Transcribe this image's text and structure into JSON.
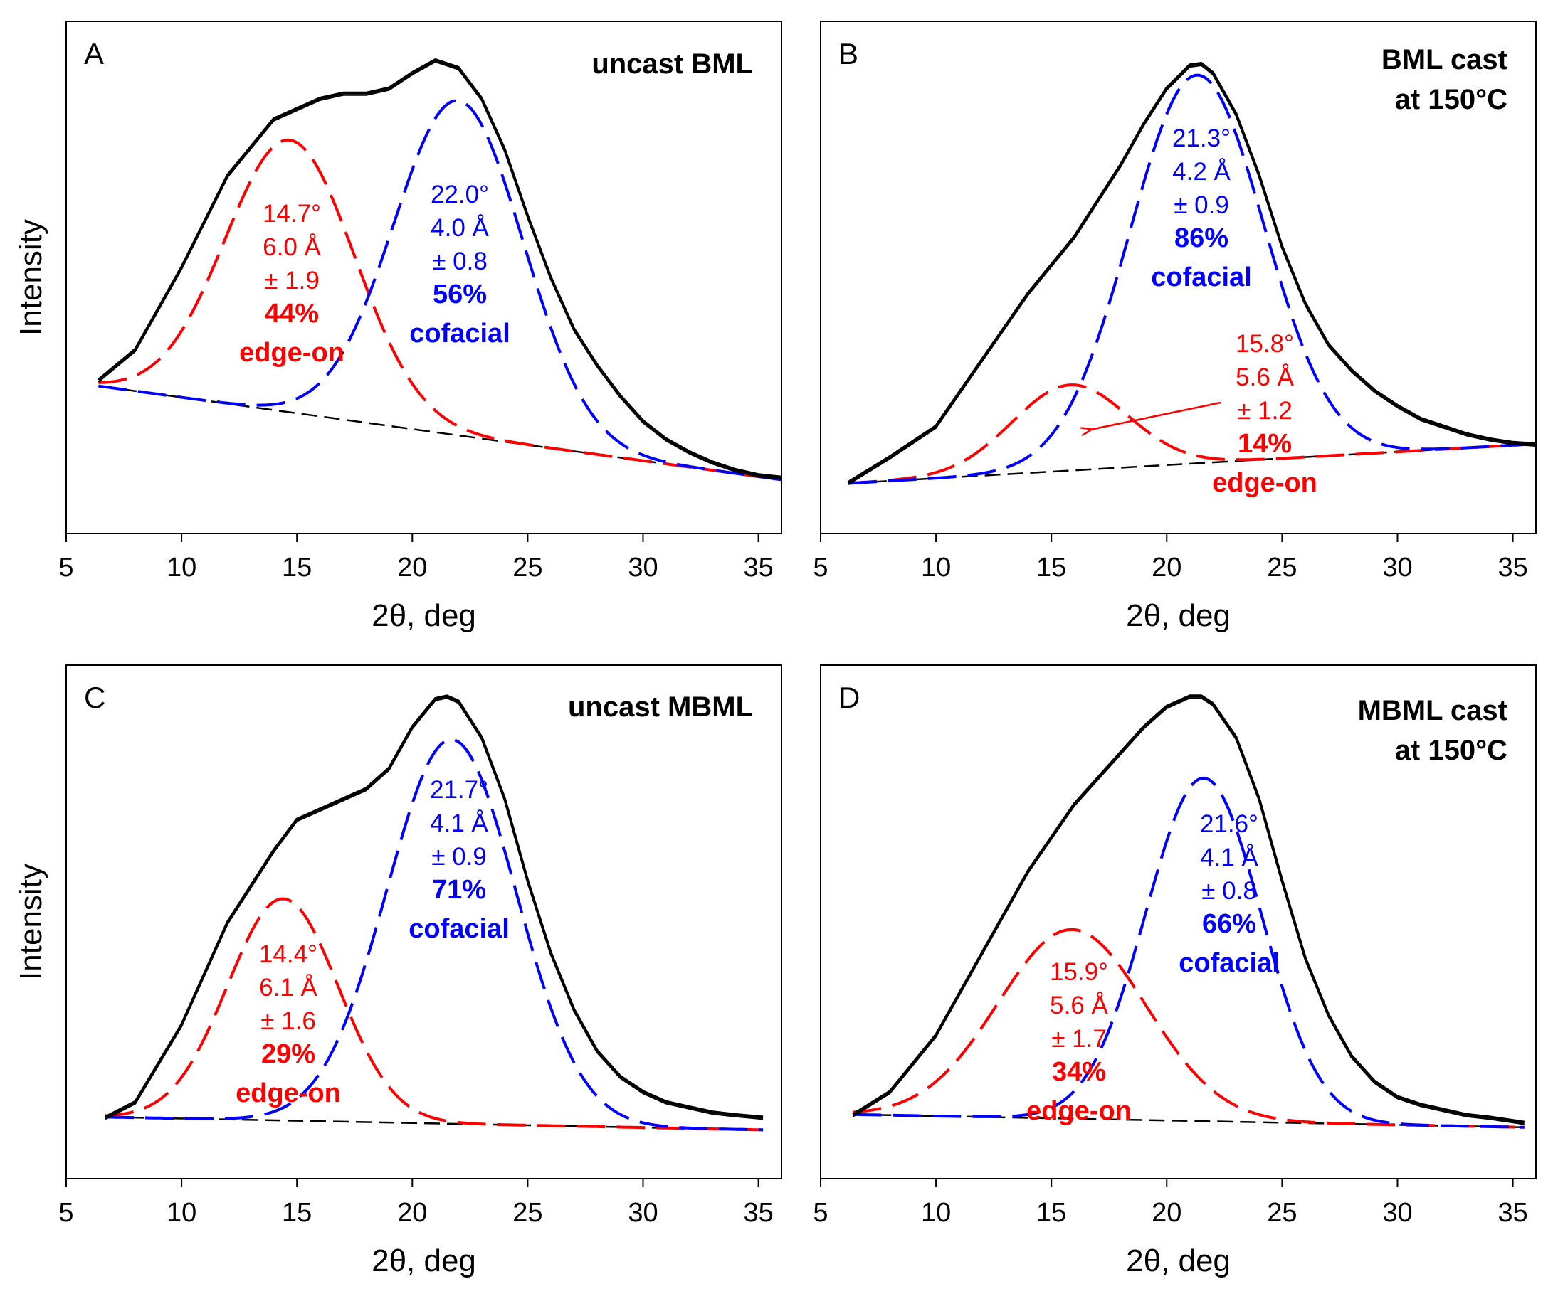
{
  "figure": {
    "xlabel": "2θ, deg",
    "ylabel": "Intensity"
  },
  "colors": {
    "measured": "#000000",
    "edge_on": "#ff0000",
    "cofacial": "#0000ff",
    "baseline": "#000000"
  },
  "chart_data": [
    {
      "type": "line",
      "panel": "A",
      "title": "uncast BML",
      "title_lines": [
        "uncast BML"
      ],
      "xlabel": "2θ, deg",
      "ylabel": "Intensity",
      "xlim": [
        5,
        36
      ],
      "xticks": [
        "5",
        "10",
        "15",
        "20",
        "25",
        "30",
        "35"
      ],
      "ylim": [
        0,
        1
      ],
      "x_range": [
        6.4,
        36
      ],
      "baseline": {
        "y0": 0.288,
        "y1": 0.105
      },
      "measured": [
        [
          6.4,
          0.3
        ],
        [
          8,
          0.36
        ],
        [
          10,
          0.52
        ],
        [
          12,
          0.7
        ],
        [
          14,
          0.81
        ],
        [
          16,
          0.85
        ],
        [
          17,
          0.86
        ],
        [
          18,
          0.86
        ],
        [
          19,
          0.87
        ],
        [
          20,
          0.9
        ],
        [
          21,
          0.925
        ],
        [
          22,
          0.91
        ],
        [
          23,
          0.85
        ],
        [
          24,
          0.75
        ],
        [
          25,
          0.62
        ],
        [
          26,
          0.5
        ],
        [
          27,
          0.4
        ],
        [
          28,
          0.33
        ],
        [
          29,
          0.27
        ],
        [
          30,
          0.22
        ],
        [
          31,
          0.185
        ],
        [
          32,
          0.16
        ],
        [
          33,
          0.14
        ],
        [
          34,
          0.125
        ],
        [
          35,
          0.115
        ],
        [
          36,
          0.11
        ]
      ],
      "components": [
        {
          "name": "edge-on",
          "center": 14.7,
          "d_spacing": "6.0 Å",
          "fwhm_text": "± 1.9",
          "percent": "44%",
          "peak_y": 0.768,
          "width": 2.8,
          "labels": [
            "14.7°",
            "6.0 Å",
            "± 1.9",
            "44%",
            "edge-on"
          ]
        },
        {
          "name": "cofacial",
          "center": 22.0,
          "d_spacing": "4.0 Å",
          "fwhm_text": "± 0.8",
          "percent": "56%",
          "peak_y": 0.845,
          "width": 2.8,
          "labels": [
            "22.0°",
            "4.0 Å",
            "± 0.8",
            "56%",
            "cofacial"
          ]
        }
      ]
    },
    {
      "type": "line",
      "panel": "B",
      "title": "BML cast at 150°C",
      "title_lines": [
        "BML cast",
        "at 150°C"
      ],
      "xlabel": "2θ, deg",
      "ylabel": "Intensity",
      "xlim": [
        5,
        36
      ],
      "xticks": [
        "5",
        "10",
        "15",
        "20",
        "25",
        "30",
        "35"
      ],
      "ylim": [
        0,
        1
      ],
      "x_range": [
        6.2,
        36
      ],
      "baseline": {
        "y0": 0.098,
        "y1": 0.175
      },
      "measured": [
        [
          6.2,
          0.1
        ],
        [
          8,
          0.15
        ],
        [
          10,
          0.21
        ],
        [
          12,
          0.34
        ],
        [
          14,
          0.47
        ],
        [
          16,
          0.58
        ],
        [
          18,
          0.72
        ],
        [
          19,
          0.8
        ],
        [
          20,
          0.87
        ],
        [
          21,
          0.915
        ],
        [
          21.5,
          0.918
        ],
        [
          22,
          0.9
        ],
        [
          23,
          0.82
        ],
        [
          24,
          0.7
        ],
        [
          25,
          0.56
        ],
        [
          26,
          0.45
        ],
        [
          27,
          0.37
        ],
        [
          28,
          0.32
        ],
        [
          29,
          0.28
        ],
        [
          30,
          0.25
        ],
        [
          31,
          0.225
        ],
        [
          32,
          0.21
        ],
        [
          33,
          0.195
        ],
        [
          34,
          0.185
        ],
        [
          35,
          0.178
        ],
        [
          36,
          0.175
        ]
      ],
      "components": [
        {
          "name": "edge-on",
          "center": 15.8,
          "d_spacing": "5.6 Å",
          "fwhm_text": "± 1.2",
          "percent": "14%",
          "peak_y": 0.29,
          "width": 2.5,
          "labels": [
            "15.8°",
            "5.6 Å",
            "± 1.2",
            "14%",
            "edge-on"
          ]
        },
        {
          "name": "cofacial",
          "center": 21.3,
          "d_spacing": "4.2 Å",
          "fwhm_text": "± 0.9",
          "percent": "86%",
          "peak_y": 0.895,
          "width": 2.9,
          "labels": [
            "21.3°",
            "4.2 Å",
            "± 0.9",
            "86%",
            "cofacial"
          ]
        }
      ]
    },
    {
      "type": "line",
      "panel": "C",
      "title": "uncast MBML",
      "title_lines": [
        "uncast MBML"
      ],
      "xlabel": "2θ, deg",
      "ylabel": "Intensity",
      "xlim": [
        5,
        36
      ],
      "xticks": [
        "5",
        "10",
        "15",
        "20",
        "25",
        "30",
        "35"
      ],
      "ylim": [
        0,
        1
      ],
      "x_range": [
        6.7,
        35.2
      ],
      "baseline": {
        "y0": 0.12,
        "y1": 0.095
      },
      "measured": [
        [
          6.7,
          0.12
        ],
        [
          8,
          0.15
        ],
        [
          10,
          0.3
        ],
        [
          12,
          0.5
        ],
        [
          14,
          0.64
        ],
        [
          15,
          0.7
        ],
        [
          16,
          0.72
        ],
        [
          17,
          0.74
        ],
        [
          18,
          0.76
        ],
        [
          19,
          0.8
        ],
        [
          20,
          0.88
        ],
        [
          21,
          0.935
        ],
        [
          21.5,
          0.94
        ],
        [
          22,
          0.93
        ],
        [
          23,
          0.86
        ],
        [
          24,
          0.74
        ],
        [
          25,
          0.58
        ],
        [
          26,
          0.44
        ],
        [
          27,
          0.33
        ],
        [
          28,
          0.25
        ],
        [
          29,
          0.2
        ],
        [
          30,
          0.17
        ],
        [
          31,
          0.15
        ],
        [
          32,
          0.14
        ],
        [
          33,
          0.13
        ],
        [
          34,
          0.125
        ],
        [
          35.2,
          0.12
        ]
      ],
      "components": [
        {
          "name": "edge-on",
          "center": 14.4,
          "d_spacing": "6.1 Å",
          "fwhm_text": "± 1.6",
          "percent": "29%",
          "peak_y": 0.545,
          "width": 2.4,
          "labels": [
            "14.4°",
            "6.1 Å",
            "± 1.6",
            "29%",
            "edge-on"
          ]
        },
        {
          "name": "cofacial",
          "center": 21.7,
          "d_spacing": "4.1 Å",
          "fwhm_text": "± 0.9",
          "percent": "71%",
          "peak_y": 0.855,
          "width": 2.8,
          "labels": [
            "21.7°",
            "4.1 Å",
            "± 0.9",
            "71%",
            "cofacial"
          ]
        }
      ]
    },
    {
      "type": "line",
      "panel": "D",
      "title": "MBML cast at 150°C",
      "title_lines": [
        "MBML cast",
        "at 150°C"
      ],
      "xlabel": "2θ, deg",
      "ylabel": "Intensity",
      "xlim": [
        5,
        36
      ],
      "xticks": [
        "5",
        "10",
        "15",
        "20",
        "25",
        "30",
        "35"
      ],
      "ylim": [
        0,
        1
      ],
      "x_range": [
        6.4,
        35.5
      ],
      "baseline": {
        "y0": 0.125,
        "y1": 0.1
      },
      "measured": [
        [
          6.4,
          0.125
        ],
        [
          8,
          0.17
        ],
        [
          10,
          0.28
        ],
        [
          12,
          0.44
        ],
        [
          14,
          0.6
        ],
        [
          16,
          0.73
        ],
        [
          18,
          0.83
        ],
        [
          19,
          0.88
        ],
        [
          20,
          0.92
        ],
        [
          21,
          0.94
        ],
        [
          21.5,
          0.94
        ],
        [
          22,
          0.925
        ],
        [
          23,
          0.86
        ],
        [
          24,
          0.74
        ],
        [
          25,
          0.58
        ],
        [
          26,
          0.43
        ],
        [
          27,
          0.32
        ],
        [
          28,
          0.24
        ],
        [
          29,
          0.19
        ],
        [
          30,
          0.16
        ],
        [
          31,
          0.145
        ],
        [
          32,
          0.135
        ],
        [
          33,
          0.125
        ],
        [
          34,
          0.12
        ],
        [
          35.5,
          0.11
        ]
      ],
      "components": [
        {
          "name": "edge-on",
          "center": 15.9,
          "d_spacing": "5.6 Å",
          "fwhm_text": "± 1.7",
          "percent": "34%",
          "peak_y": 0.485,
          "width": 3.2,
          "labels": [
            "15.9°",
            "5.6 Å",
            "± 1.7",
            "34%",
            "edge-on"
          ]
        },
        {
          "name": "cofacial",
          "center": 21.6,
          "d_spacing": "4.1 Å",
          "fwhm_text": "± 0.8",
          "percent": "66%",
          "peak_y": 0.78,
          "width": 2.5,
          "labels": [
            "21.6°",
            "4.1 Å",
            "± 0.8",
            "66%",
            "cofacial"
          ]
        }
      ]
    }
  ]
}
